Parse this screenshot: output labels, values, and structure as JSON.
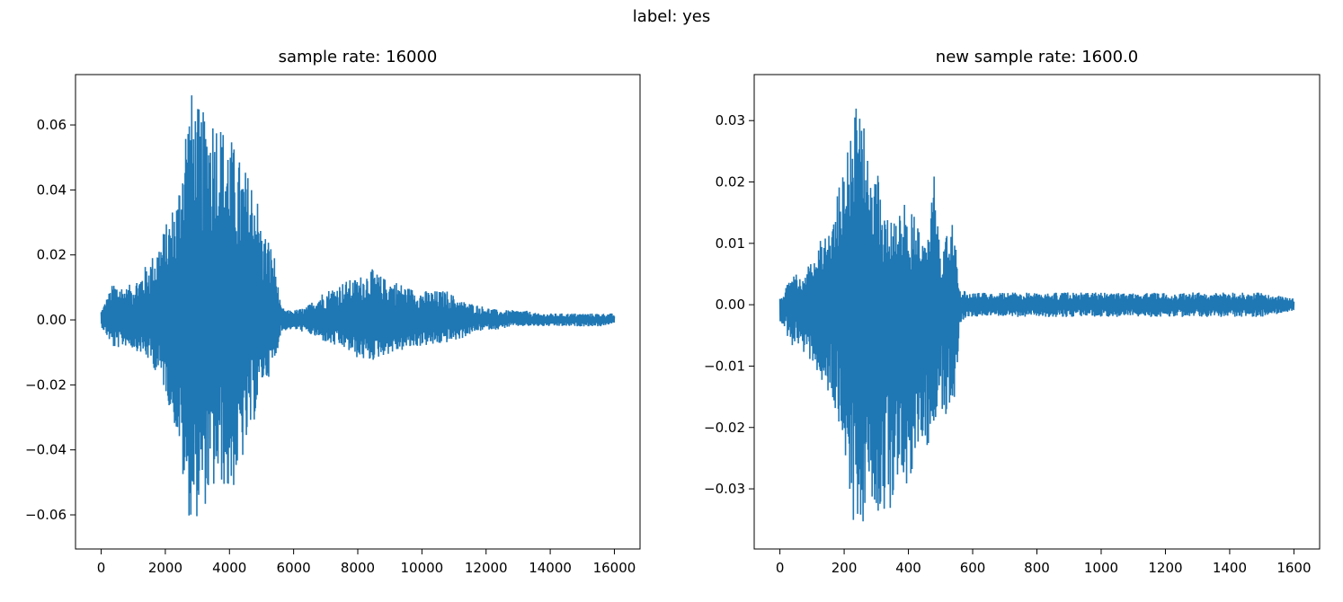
{
  "figure": {
    "suptitle": "label: yes"
  },
  "chart_data": [
    {
      "type": "line",
      "title": "sample rate: 16000",
      "xlabel": "",
      "ylabel": "",
      "xlim": [
        -800,
        16800
      ],
      "ylim": [
        -0.0705,
        0.0755
      ],
      "xticks": [
        0,
        2000,
        4000,
        6000,
        8000,
        10000,
        12000,
        14000,
        16000
      ],
      "yticks": [
        -0.06,
        -0.04,
        -0.02,
        0.0,
        0.02,
        0.04,
        0.06
      ],
      "ytick_labels": [
        "−0.06",
        "−0.04",
        "−0.02",
        "0.00",
        "0.02",
        "0.04",
        "0.06"
      ],
      "grid": false,
      "legend": "none",
      "color": "#1f77b4",
      "series": [
        {
          "x": [
            0,
            400,
            800,
            1200,
            1600,
            2000,
            2400,
            2600,
            2800,
            3000,
            3200,
            3400,
            3600,
            3800,
            4000,
            4200,
            4400,
            4600,
            4800,
            5000,
            5200,
            5400,
            5600,
            5800,
            6000,
            6400,
            6800,
            7200,
            7600,
            8000,
            8400,
            8800,
            9200,
            9600,
            10000,
            10400,
            10800,
            11200,
            11600,
            12000,
            12400,
            12800,
            13200,
            13600,
            14000,
            14400,
            14800,
            15200,
            15600,
            16000
          ],
          "max": [
            0.003,
            0.012,
            0.01,
            0.014,
            0.02,
            0.029,
            0.04,
            0.062,
            0.071,
            0.066,
            0.064,
            0.066,
            0.065,
            0.06,
            0.058,
            0.052,
            0.048,
            0.045,
            0.044,
            0.028,
            0.026,
            0.02,
            0.004,
            0.003,
            0.003,
            0.004,
            0.008,
            0.01,
            0.012,
            0.013,
            0.016,
            0.013,
            0.012,
            0.01,
            0.009,
            0.009,
            0.009,
            0.006,
            0.005,
            0.004,
            0.003,
            0.003,
            0.003,
            0.002,
            0.002,
            0.002,
            0.002,
            0.002,
            0.002,
            0.002
          ],
          "min": [
            -0.002,
            -0.009,
            -0.008,
            -0.01,
            -0.014,
            -0.022,
            -0.037,
            -0.055,
            -0.063,
            -0.061,
            -0.058,
            -0.055,
            -0.052,
            -0.051,
            -0.056,
            -0.05,
            -0.044,
            -0.038,
            -0.03,
            -0.02,
            -0.018,
            -0.014,
            -0.004,
            -0.003,
            -0.003,
            -0.004,
            -0.006,
            -0.008,
            -0.009,
            -0.012,
            -0.013,
            -0.011,
            -0.01,
            -0.009,
            -0.008,
            -0.008,
            -0.007,
            -0.006,
            -0.004,
            -0.003,
            -0.003,
            -0.002,
            -0.002,
            -0.002,
            -0.002,
            -0.002,
            -0.002,
            -0.002,
            -0.002,
            -0.001
          ]
        }
      ]
    },
    {
      "type": "line",
      "title": "new sample rate: 1600.0",
      "xlabel": "",
      "ylabel": "",
      "xlim": [
        -80,
        1680
      ],
      "ylim": [
        -0.0398,
        0.0375
      ],
      "xticks": [
        0,
        200,
        400,
        600,
        800,
        1000,
        1200,
        1400,
        1600
      ],
      "yticks": [
        -0.03,
        -0.02,
        -0.01,
        0.0,
        0.01,
        0.02,
        0.03
      ],
      "ytick_labels": [
        "−0.03",
        "−0.02",
        "−0.01",
        "0.00",
        "0.01",
        "0.02",
        "0.03"
      ],
      "grid": false,
      "legend": "none",
      "color": "#1f77b4",
      "series": [
        {
          "x": [
            0,
            40,
            80,
            120,
            160,
            200,
            220,
            240,
            260,
            280,
            300,
            320,
            340,
            360,
            380,
            400,
            420,
            440,
            460,
            480,
            500,
            520,
            540,
            560,
            580,
            620,
            660,
            700,
            800,
            900,
            1000,
            1100,
            1200,
            1300,
            1400,
            1500,
            1600
          ],
          "max": [
            0.001,
            0.005,
            0.005,
            0.011,
            0.013,
            0.024,
            0.034,
            0.032,
            0.03,
            0.024,
            0.023,
            0.016,
            0.016,
            0.015,
            0.018,
            0.014,
            0.017,
            0.011,
            0.012,
            0.021,
            0.009,
            0.014,
            0.013,
            0.003,
            0.002,
            0.002,
            0.002,
            0.002,
            0.002,
            0.002,
            0.002,
            0.002,
            0.002,
            0.002,
            0.002,
            0.002,
            0.001
          ],
          "min": [
            -0.003,
            -0.007,
            -0.008,
            -0.011,
            -0.016,
            -0.022,
            -0.036,
            -0.034,
            -0.036,
            -0.032,
            -0.033,
            -0.035,
            -0.034,
            -0.03,
            -0.027,
            -0.03,
            -0.026,
            -0.025,
            -0.023,
            -0.02,
            -0.017,
            -0.019,
            -0.02,
            -0.003,
            -0.002,
            -0.002,
            -0.002,
            -0.002,
            -0.002,
            -0.002,
            -0.002,
            -0.002,
            -0.002,
            -0.002,
            -0.002,
            -0.002,
            -0.001
          ]
        }
      ]
    }
  ]
}
